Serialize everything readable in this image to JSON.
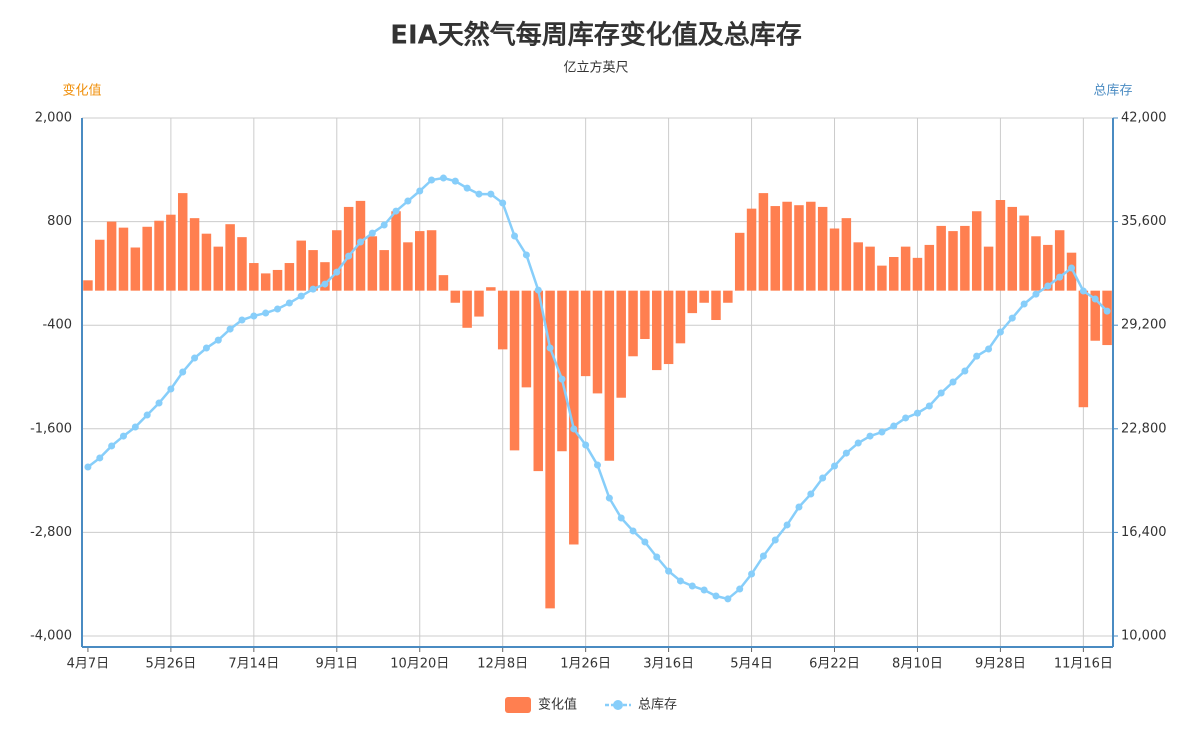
{
  "chart_data": {
    "type": "combo",
    "title": "EIA天然气每周库存变化值及总库存",
    "subtitle": "亿立方英尺",
    "ylabel": "变化值",
    "y2label": "总库存",
    "ylabel_color": "#f0900c",
    "y2label_color": "#4a8bc2",
    "categories": [
      "4月7日",
      null,
      null,
      null,
      null,
      null,
      null,
      "5月26日",
      null,
      null,
      null,
      null,
      null,
      null,
      "7月14日",
      null,
      null,
      null,
      null,
      null,
      null,
      "9月1日",
      null,
      null,
      null,
      null,
      null,
      null,
      "10月20日",
      null,
      null,
      null,
      null,
      null,
      null,
      "12月8日",
      null,
      null,
      null,
      null,
      null,
      null,
      "1月26日",
      null,
      null,
      null,
      null,
      null,
      null,
      "3月16日",
      null,
      null,
      null,
      null,
      null,
      null,
      "5月4日",
      null,
      null,
      null,
      null,
      null,
      null,
      "6月22日",
      null,
      null,
      null,
      null,
      null,
      null,
      "8月10日",
      null,
      null,
      null,
      null,
      null,
      null,
      "9月28日",
      null,
      null,
      null,
      null,
      null,
      null,
      "11月16日",
      null,
      null
    ],
    "series": [
      {
        "name": "变化值",
        "type": "bar",
        "color": "#ff7f50",
        "values": [
          120,
          590,
          800,
          730,
          500,
          740,
          810,
          880,
          1130,
          840,
          660,
          510,
          770,
          620,
          320,
          200,
          240,
          320,
          580,
          470,
          330,
          700,
          970,
          1040,
          630,
          470,
          920,
          560,
          690,
          700,
          180,
          -140,
          -430,
          -300,
          40,
          -680,
          -1850,
          -1120,
          -2090,
          -3680,
          -1860,
          -2940,
          -990,
          -1190,
          -1970,
          -1240,
          -760,
          -560,
          -920,
          -850,
          -610,
          -260,
          -140,
          -340,
          -140,
          670,
          950,
          1130,
          980,
          1030,
          990,
          1030,
          970,
          720,
          840,
          560,
          510,
          290,
          390,
          510,
          380,
          530,
          750,
          690,
          750,
          920,
          510,
          1050,
          970,
          870,
          630,
          530,
          700,
          440,
          -1350,
          -580,
          -630
        ]
      },
      {
        "name": "总库存",
        "type": "line",
        "axis": "y2",
        "color": "#87cefa",
        "values": [
          20440,
          21000,
          21740,
          22350,
          22910,
          23650,
          24390,
          25260,
          26310,
          27170,
          27790,
          28280,
          28960,
          29520,
          29770,
          29950,
          30200,
          30570,
          31000,
          31430,
          31740,
          32480,
          33470,
          34340,
          34890,
          35390,
          36250,
          36870,
          37490,
          38170,
          38290,
          38100,
          37670,
          37300,
          37300,
          36750,
          34710,
          33540,
          31370,
          27790,
          25870,
          22790,
          21800,
          20560,
          18520,
          17290,
          16490,
          15810,
          14880,
          14010,
          13400,
          13090,
          12840,
          12470,
          12290,
          12900,
          13830,
          14940,
          15930,
          16860,
          17970,
          18770,
          19760,
          20500,
          21300,
          21920,
          22350,
          22600,
          22970,
          23470,
          23770,
          24210,
          25010,
          25690,
          26370,
          27290,
          27730,
          28780,
          29640,
          30510,
          31120,
          31620,
          32170,
          32730,
          31310,
          30820,
          30070
        ]
      }
    ],
    "ylim": [
      -4000,
      2000
    ],
    "yticks": [
      {
        "value": -4000,
        "label": "-4,000"
      },
      {
        "value": -2800,
        "label": "-2,800"
      },
      {
        "value": -1600,
        "label": "-1,600"
      },
      -400,
      800,
      {
        "value": 2000,
        "label": "2,000"
      }
    ],
    "y2lim": [
      10000,
      42000
    ],
    "y2ticks": [
      {
        "value": 10000,
        "label": "10,000"
      },
      {
        "value": 16400,
        "label": "16,400"
      },
      {
        "value": 22800,
        "label": "22,800"
      },
      {
        "value": 29200,
        "label": "29,200"
      },
      {
        "value": 35600,
        "label": "35,600"
      },
      {
        "value": 42000,
        "label": "42,000"
      }
    ],
    "axis_color": "#4a8bc2",
    "grid": true,
    "legend": "bottom"
  }
}
